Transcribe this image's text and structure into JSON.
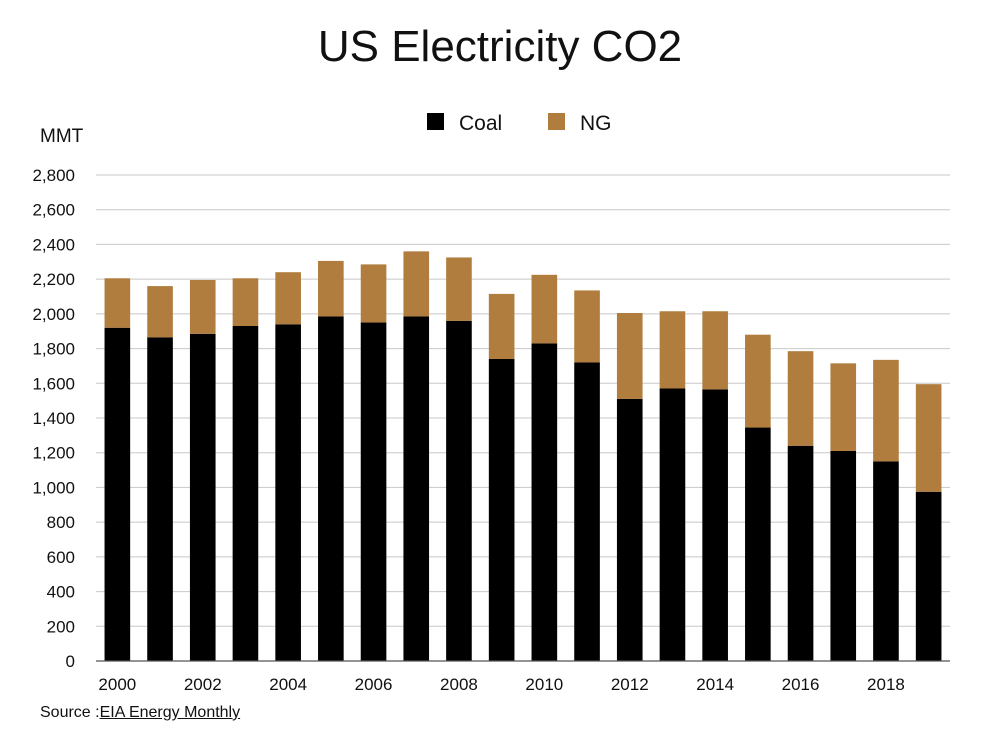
{
  "chart_data": {
    "type": "bar",
    "stacked": true,
    "title": "US Electricity CO2",
    "ylabel": "MMT",
    "xlabel": "",
    "ylim": [
      0,
      2800
    ],
    "yticks": [
      "0",
      "200",
      "400",
      "600",
      "800",
      "1,000",
      "1,200",
      "1,400",
      "1,600",
      "1,800",
      "2,000",
      "2,200",
      "2,400",
      "2,600",
      "2,800"
    ],
    "ytick_values": [
      0,
      200,
      400,
      600,
      800,
      1000,
      1200,
      1400,
      1600,
      1800,
      2000,
      2200,
      2400,
      2600,
      2800
    ],
    "categories": [
      "2000",
      "2001",
      "2002",
      "2003",
      "2004",
      "2005",
      "2006",
      "2007",
      "2008",
      "2009",
      "2010",
      "2011",
      "2012",
      "2013",
      "2014",
      "2015",
      "2016",
      "2017",
      "2018",
      "2019"
    ],
    "x_tick_labels": [
      "2000",
      "",
      "2002",
      "",
      "2004",
      "",
      "2006",
      "",
      "2008",
      "",
      "2010",
      "",
      "2012",
      "",
      "2014",
      "",
      "2016",
      "",
      "2018",
      ""
    ],
    "grid": true,
    "legend": "top-center",
    "series": [
      {
        "name": "Coal",
        "color": "#000000",
        "values": [
          1920,
          1865,
          1885,
          1930,
          1940,
          1985,
          1950,
          1985,
          1960,
          1740,
          1830,
          1720,
          1510,
          1570,
          1565,
          1345,
          1240,
          1210,
          1150,
          975
        ]
      },
      {
        "name": "NG",
        "color": "#b07d3e",
        "values": [
          285,
          295,
          310,
          275,
          300,
          320,
          335,
          375,
          365,
          375,
          395,
          415,
          495,
          445,
          450,
          535,
          545,
          505,
          585,
          620
        ]
      }
    ]
  },
  "source": {
    "prefix": "Source :",
    "text": "EIA Energy Monthly"
  }
}
